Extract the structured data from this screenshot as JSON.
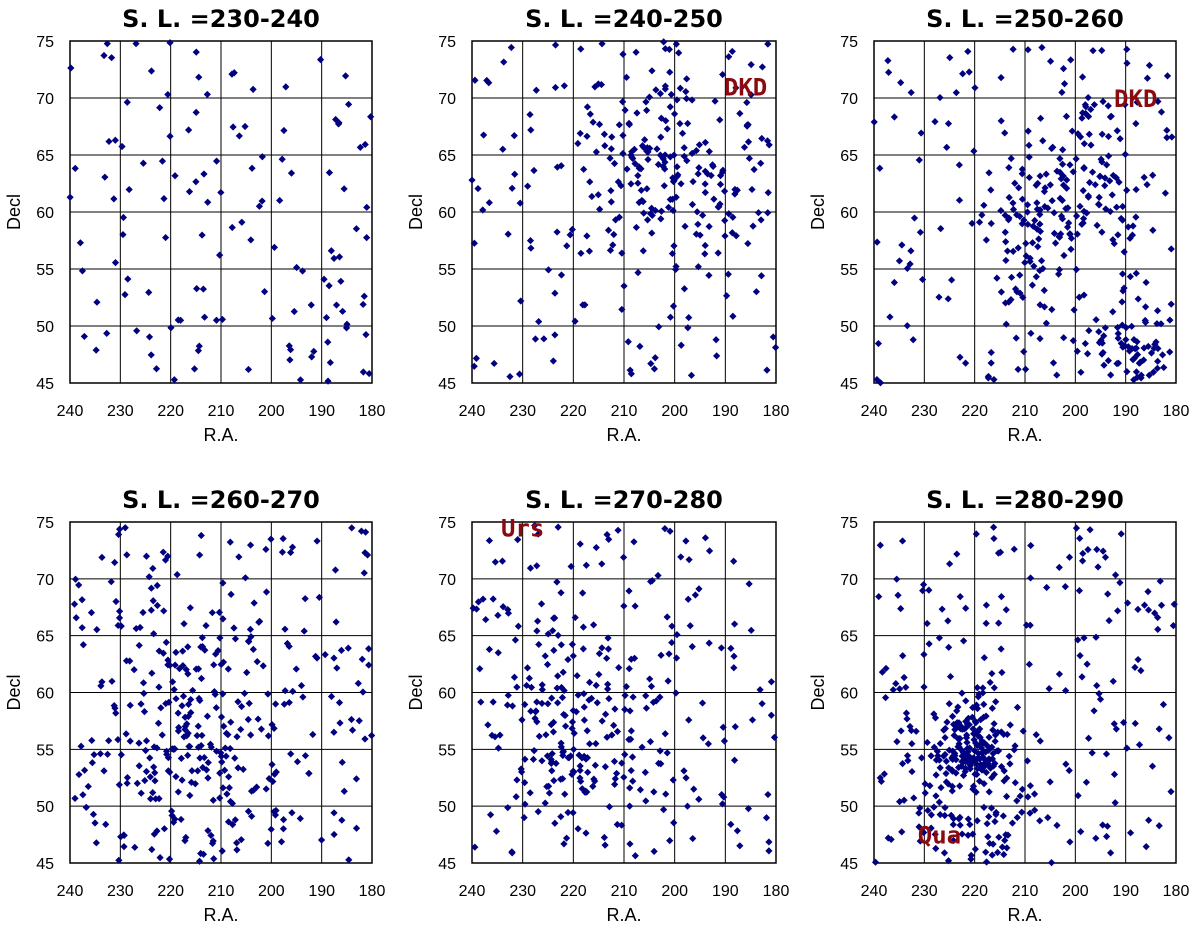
{
  "chart_data": [
    {
      "type": "scatter",
      "title": "S. L. =230-240",
      "xlabel": "R.A.",
      "ylabel": "Decl",
      "xlim": [
        240,
        180
      ],
      "ylim": [
        45,
        75
      ],
      "xticks": [
        240,
        230,
        220,
        210,
        200,
        190,
        180
      ],
      "yticks": [
        45,
        50,
        55,
        60,
        65,
        70,
        75
      ],
      "grid": true,
      "point_count": 130,
      "annotations": []
    },
    {
      "type": "scatter",
      "title": "S. L. =240-250",
      "xlabel": "R.A.",
      "ylabel": "Decl",
      "xlim": [
        240,
        180
      ],
      "ylim": [
        45,
        75
      ],
      "xticks": [
        240,
        230,
        220,
        210,
        200,
        190,
        180
      ],
      "yticks": [
        45,
        50,
        55,
        60,
        65,
        70,
        75
      ],
      "grid": true,
      "point_count": 300,
      "annotations": [
        {
          "text": "DKD",
          "ra": 186,
          "decl": 71
        }
      ]
    },
    {
      "type": "scatter",
      "title": "S. L. =250-260",
      "xlabel": "R.A.",
      "ylabel": "Decl",
      "xlim": [
        240,
        180
      ],
      "ylim": [
        45,
        75
      ],
      "xticks": [
        240,
        230,
        220,
        210,
        200,
        190,
        180
      ],
      "yticks": [
        45,
        50,
        55,
        60,
        65,
        70,
        75
      ],
      "grid": true,
      "point_count": 380,
      "annotations": [
        {
          "text": "DKD",
          "ra": 188,
          "decl": 70
        }
      ]
    },
    {
      "type": "scatter",
      "title": "S. L. =260-270",
      "xlabel": "R.A.",
      "ylabel": "Decl",
      "xlim": [
        240,
        180
      ],
      "ylim": [
        45,
        75
      ],
      "xticks": [
        240,
        230,
        220,
        210,
        200,
        190,
        180
      ],
      "yticks": [
        45,
        50,
        55,
        60,
        65,
        70,
        75
      ],
      "grid": true,
      "point_count": 380,
      "annotations": []
    },
    {
      "type": "scatter",
      "title": "S. L. =270-280",
      "xlabel": "R.A.",
      "ylabel": "Decl",
      "xlim": [
        240,
        180
      ],
      "ylim": [
        45,
        75
      ],
      "xticks": [
        240,
        230,
        220,
        210,
        200,
        190,
        180
      ],
      "yticks": [
        45,
        50,
        55,
        60,
        65,
        70,
        75
      ],
      "grid": true,
      "point_count": 330,
      "annotations": [
        {
          "text": "Urs",
          "ra": 230,
          "decl": 74.5
        }
      ]
    },
    {
      "type": "scatter",
      "title": "S. L. =280-290",
      "xlabel": "R.A.",
      "ylabel": "Decl",
      "xlim": [
        240,
        180
      ],
      "ylim": [
        45,
        75
      ],
      "xticks": [
        240,
        230,
        220,
        210,
        200,
        190,
        180
      ],
      "yticks": [
        45,
        50,
        55,
        60,
        65,
        70,
        75
      ],
      "grid": true,
      "point_count": 430,
      "annotations": [
        {
          "text": "Qua",
          "ra": 227,
          "decl": 47.5
        }
      ]
    }
  ]
}
